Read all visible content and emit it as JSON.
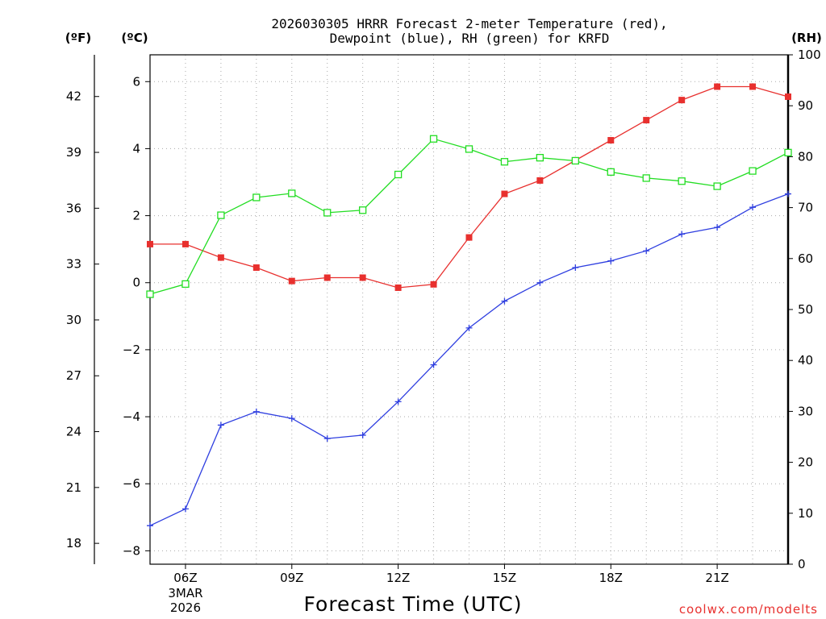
{
  "chart_data": {
    "type": "line",
    "title_lines": [
      "2026030305 HRRR Forecast 2-meter Temperature (red),",
      "Dewpoint (blue), RH (green) for KRFD"
    ],
    "xlabel": "Forecast Time (UTC)",
    "credit": "coolwx.com/modelts",
    "units": {
      "left_outer": "(ºF)",
      "left_inner": "(ºC)",
      "right": "(RH)"
    },
    "x_hours": [
      5,
      6,
      7,
      8,
      9,
      10,
      11,
      12,
      13,
      14,
      15,
      16,
      17,
      18,
      19,
      20,
      21,
      22,
      23
    ],
    "x_ticks": [
      {
        "hour": 6,
        "label": "06Z",
        "sub1": "3MAR",
        "sub2": "2026"
      },
      {
        "hour": 9,
        "label": "09Z"
      },
      {
        "hour": 12,
        "label": "12Z"
      },
      {
        "hour": 15,
        "label": "15Z"
      },
      {
        "hour": 18,
        "label": "18Z"
      },
      {
        "hour": 21,
        "label": "21Z"
      }
    ],
    "celsius_axis": {
      "min": -8.4,
      "max": 6.8,
      "ticks": [
        -8,
        -6,
        -4,
        -2,
        0,
        2,
        4,
        6
      ]
    },
    "fahrenheit_ticks": [
      18,
      21,
      24,
      27,
      30,
      33,
      36,
      39,
      42
    ],
    "rh_axis": {
      "min": 0,
      "max": 100,
      "ticks": [
        0,
        10,
        20,
        30,
        40,
        50,
        60,
        70,
        80,
        90,
        100
      ]
    },
    "series": [
      {
        "name": "Temperature",
        "unit": "C",
        "color": "#e8302e",
        "marker": "filled-square",
        "values": [
          1.15,
          1.15,
          0.75,
          0.45,
          0.05,
          0.15,
          0.15,
          -0.15,
          -0.05,
          1.35,
          2.65,
          3.05,
          3.65,
          4.25,
          4.85,
          5.45,
          5.85,
          5.85,
          5.55
        ]
      },
      {
        "name": "Dewpoint",
        "unit": "C",
        "color": "#2f3fe0",
        "marker": "plus",
        "values": [
          -7.25,
          -6.75,
          -4.25,
          -3.85,
          -4.05,
          -4.65,
          -4.55,
          -3.55,
          -2.45,
          -1.35,
          -0.55,
          0.0,
          0.45,
          0.65,
          0.95,
          1.45,
          1.65,
          2.25,
          2.65
        ]
      },
      {
        "name": "Relative Humidity",
        "unit": "%",
        "color": "#22dd22",
        "marker": "open-square",
        "values": [
          53.0,
          55.0,
          68.5,
          72.0,
          72.8,
          69.0,
          69.5,
          76.5,
          83.5,
          81.5,
          79.0,
          79.8,
          79.2,
          77.0,
          75.8,
          75.2,
          74.2,
          77.2,
          80.8
        ]
      }
    ]
  }
}
